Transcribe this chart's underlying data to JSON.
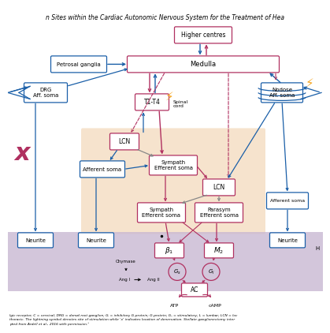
{
  "bg_color": "#ffffff",
  "peach_bg": "#f5dfc5",
  "purple_bg": "#c9b8d2",
  "blue": "#1a5fa8",
  "red": "#b03060",
  "gray": "#888888",
  "orange": "#f5a623",
  "title_top": "n Sites within the Cardiac Autonomic Nervous System for the Treatment of Hea",
  "caption_line1": "lgic receptor; C = cervical; DRG = dorsal root ganglion; Gᵢ = inhibitory G-protein; G-protein; Gₛ = stimulatory; L = lumbar; LCN = loc",
  "caption_line2": "thoracic. The lightning symbol denotes site of stimulation while 'x' indicates location of denervation. Stellate ganglionectomy inter",
  "caption_line3": "pted from Ardell et al., 2016 with permission.⁸"
}
